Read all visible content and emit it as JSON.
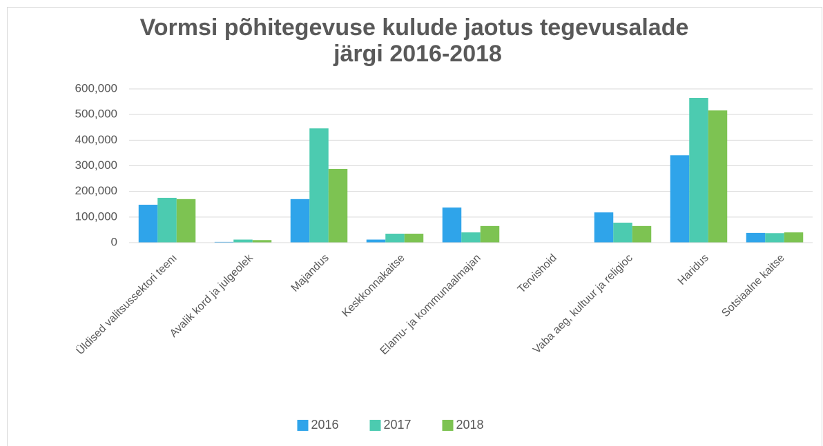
{
  "chart_data": {
    "type": "bar",
    "title": [
      "Vormsi põhitegevuse kulude jaotus tegevusalade",
      "järgi 2016-2018"
    ],
    "categories": [
      "Üldised valitsussektori teenı",
      "Avalik kord ja julgeolek",
      "Majandus",
      "Keskkonnakaitse",
      "Elamu- ja kommunaalmajan",
      "Tervishoid",
      "Vaba aeg, kultuur ja religioc",
      "Haridus",
      "Sotsiaalne kaitse"
    ],
    "series": [
      {
        "name": "2016",
        "color": "#2fa4ea",
        "values": [
          148000,
          3000,
          170000,
          12000,
          137000,
          0,
          118000,
          341000,
          38000
        ]
      },
      {
        "name": "2017",
        "color": "#4ccbb0",
        "values": [
          175000,
          12000,
          446000,
          35000,
          40000,
          0,
          78000,
          565000,
          37000
        ]
      },
      {
        "name": "2018",
        "color": "#7dc352",
        "values": [
          170000,
          10000,
          288000,
          35000,
          65000,
          0,
          65000,
          516000,
          40000
        ]
      }
    ],
    "ylim": [
      0,
      600000
    ],
    "yticks": [
      0,
      {
        "value": 100000,
        "label": "100,000"
      },
      {
        "value": 200000,
        "label": "200,000"
      },
      {
        "value": 300000,
        "label": "300,000"
      },
      {
        "value": 400000,
        "label": "400,000"
      },
      {
        "value": 500000,
        "label": "500,000"
      },
      {
        "value": 600000,
        "label": "600,000"
      }
    ],
    "grid": true,
    "legend": "bottom"
  }
}
